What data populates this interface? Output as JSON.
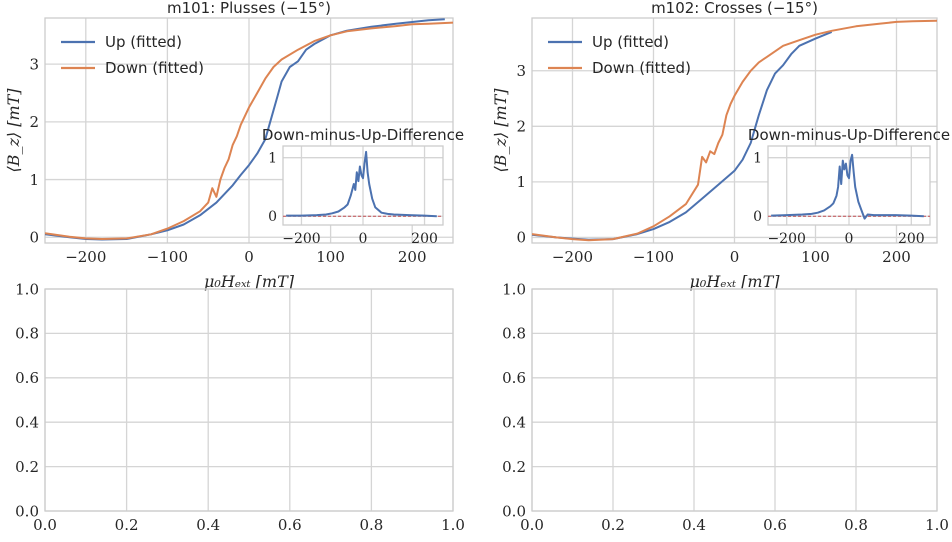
{
  "figure": {
    "background": "#ffffff",
    "grid_color": "#d5d5d5",
    "axes_color": "#cccccc",
    "text_color": "#262626"
  },
  "chart_data": [
    {
      "type": "line",
      "title": "m101: Plusses (−15°)",
      "xlabel": "μ₀Hₑₓₜ [mT]",
      "ylabel": "⟨B_z⟩ [mT]",
      "xlim": [
        -250,
        250
      ],
      "ylim": [
        -0.1,
        3.8
      ],
      "xticks": [
        -200,
        -100,
        0,
        100,
        200
      ],
      "xtick_labels": [
        "−200",
        "−100",
        "0",
        "100",
        "200"
      ],
      "yticks": [
        0,
        1,
        2,
        3
      ],
      "ytick_labels": [
        "0",
        "1",
        "2",
        "3"
      ],
      "grid": true,
      "legend_position": "upper-left",
      "series": [
        {
          "name": "Up (fitted)",
          "color": "#4c72b0",
          "x": [
            -250,
            -220,
            -200,
            -180,
            -150,
            -120,
            -100,
            -80,
            -60,
            -40,
            -20,
            -10,
            0,
            10,
            20,
            30,
            35,
            40,
            50,
            60,
            70,
            80,
            100,
            120,
            150,
            180,
            200,
            220,
            240
          ],
          "y": [
            0.05,
            0.0,
            -0.03,
            -0.04,
            -0.03,
            0.05,
            0.12,
            0.22,
            0.38,
            0.6,
            0.9,
            1.08,
            1.25,
            1.45,
            1.7,
            2.2,
            2.45,
            2.7,
            2.95,
            3.05,
            3.25,
            3.35,
            3.5,
            3.58,
            3.65,
            3.7,
            3.73,
            3.76,
            3.78
          ]
        },
        {
          "name": "Down (fitted)",
          "color": "#dd8452",
          "x": [
            -250,
            -220,
            -200,
            -180,
            -150,
            -120,
            -100,
            -80,
            -60,
            -50,
            -45,
            -40,
            -35,
            -30,
            -25,
            -20,
            -15,
            -10,
            -5,
            0,
            10,
            20,
            30,
            40,
            60,
            80,
            100,
            120,
            150,
            180,
            200,
            220,
            250
          ],
          "y": [
            0.07,
            0.01,
            -0.02,
            -0.03,
            -0.02,
            0.05,
            0.15,
            0.28,
            0.45,
            0.6,
            0.85,
            0.7,
            1.0,
            1.2,
            1.35,
            1.6,
            1.75,
            1.95,
            2.1,
            2.25,
            2.5,
            2.75,
            2.95,
            3.08,
            3.25,
            3.4,
            3.5,
            3.57,
            3.62,
            3.66,
            3.69,
            3.7,
            3.72
          ]
        }
      ],
      "inset": {
        "type": "line",
        "title": "Down-minus-Up-Difference",
        "xlim": [
          -260,
          260
        ],
        "ylim": [
          -0.15,
          1.2
        ],
        "xticks": [
          -200,
          0,
          200
        ],
        "xtick_labels": [
          "−200",
          "0",
          "200"
        ],
        "yticks": [
          0,
          1
        ],
        "ytick_labels": [
          "0",
          "1"
        ],
        "zero_line_color": "#c44e52",
        "series": [
          {
            "color": "#4c72b0",
            "x": [
              -250,
              -200,
              -150,
              -120,
              -100,
              -80,
              -60,
              -50,
              -40,
              -30,
              -25,
              -20,
              -15,
              -10,
              -5,
              0,
              5,
              10,
              15,
              20,
              30,
              40,
              60,
              80,
              100,
              150,
              200,
              240
            ],
            "y": [
              0.01,
              0.01,
              0.02,
              0.03,
              0.05,
              0.08,
              0.15,
              0.2,
              0.35,
              0.55,
              0.45,
              0.75,
              0.6,
              0.85,
              0.7,
              0.65,
              0.9,
              1.1,
              0.75,
              0.55,
              0.3,
              0.15,
              0.06,
              0.04,
              0.03,
              0.02,
              0.01,
              0.0
            ]
          }
        ]
      }
    },
    {
      "type": "line",
      "title": "m102: Crosses (−15°)",
      "xlabel": "μ₀Hₑₓₜ [mT]",
      "ylabel": "⟨B_z⟩ [mT]",
      "xlim": [
        -250,
        250
      ],
      "ylim": [
        -0.1,
        3.95
      ],
      "xticks": [
        -200,
        -100,
        0,
        100,
        200
      ],
      "xtick_labels": [
        "−200",
        "−100",
        "0",
        "100",
        "200"
      ],
      "yticks": [
        0,
        1,
        2,
        3
      ],
      "ytick_labels": [
        "0",
        "1",
        "2",
        "3"
      ],
      "grid": true,
      "legend_position": "upper-left",
      "series": [
        {
          "name": "Up (fitted)",
          "color": "#4c72b0",
          "x": [
            -250,
            -220,
            -200,
            -180,
            -150,
            -120,
            -100,
            -80,
            -60,
            -40,
            -20,
            0,
            10,
            20,
            30,
            40,
            50,
            60,
            70,
            80,
            100,
            120
          ],
          "y": [
            0.05,
            0.0,
            -0.02,
            -0.04,
            -0.03,
            0.06,
            0.15,
            0.28,
            0.45,
            0.7,
            0.95,
            1.2,
            1.4,
            1.7,
            2.2,
            2.65,
            2.95,
            3.1,
            3.3,
            3.45,
            3.58,
            3.7
          ]
        },
        {
          "name": "Down (fitted)",
          "color": "#dd8452",
          "x": [
            -250,
            -220,
            -200,
            -180,
            -150,
            -120,
            -100,
            -80,
            -60,
            -45,
            -40,
            -35,
            -30,
            -25,
            -20,
            -15,
            -10,
            -5,
            0,
            10,
            20,
            30,
            40,
            60,
            80,
            100,
            120,
            150,
            180,
            200,
            220,
            250
          ],
          "y": [
            0.06,
            0.0,
            -0.03,
            -0.05,
            -0.03,
            0.07,
            0.2,
            0.38,
            0.6,
            0.95,
            1.45,
            1.35,
            1.55,
            1.5,
            1.7,
            1.85,
            2.2,
            2.4,
            2.55,
            2.8,
            3.0,
            3.15,
            3.25,
            3.45,
            3.55,
            3.65,
            3.72,
            3.8,
            3.85,
            3.88,
            3.89,
            3.9
          ]
        }
      ],
      "inset": {
        "type": "line",
        "title": "Down-minus-Up-Difference",
        "xlim": [
          -260,
          260
        ],
        "ylim": [
          -0.15,
          1.2
        ],
        "xticks": [
          -200,
          0,
          200
        ],
        "xtick_labels": [
          "−200",
          "0",
          "200"
        ],
        "yticks": [
          0,
          1
        ],
        "ytick_labels": [
          "0",
          "1"
        ],
        "zero_line_color": "#c44e52",
        "series": [
          {
            "color": "#4c72b0",
            "x": [
              -250,
              -200,
              -150,
              -120,
              -100,
              -80,
              -60,
              -50,
              -40,
              -35,
              -30,
              -25,
              -20,
              -15,
              -10,
              -5,
              0,
              5,
              10,
              15,
              20,
              30,
              40,
              50,
              60,
              80,
              100,
              150,
              200,
              240
            ],
            "y": [
              0.01,
              0.02,
              0.03,
              0.04,
              0.06,
              0.1,
              0.17,
              0.22,
              0.35,
              0.5,
              0.85,
              0.55,
              0.95,
              0.8,
              0.9,
              0.7,
              0.65,
              0.95,
              1.05,
              0.75,
              0.5,
              0.25,
              0.1,
              -0.04,
              0.03,
              0.02,
              0.02,
              0.02,
              0.01,
              0.0
            ]
          }
        ]
      }
    },
    {
      "type": "line",
      "xlim": [
        0,
        1
      ],
      "ylim": [
        0,
        1
      ],
      "xticks": [
        0,
        0.2,
        0.4,
        0.6,
        0.8,
        1.0
      ],
      "xtick_labels": [
        "0.0",
        "0.2",
        "0.4",
        "0.6",
        "0.8",
        "1.0"
      ],
      "yticks": [
        0,
        0.2,
        0.4,
        0.6,
        0.8,
        1.0
      ],
      "ytick_labels": [
        "0.0",
        "0.2",
        "0.4",
        "0.6",
        "0.8",
        "1.0"
      ],
      "grid": true,
      "series": []
    },
    {
      "type": "line",
      "xlim": [
        0,
        1
      ],
      "ylim": [
        0,
        1
      ],
      "xticks": [
        0,
        0.2,
        0.4,
        0.6,
        0.8,
        1.0
      ],
      "xtick_labels": [
        "0.0",
        "0.2",
        "0.4",
        "0.6",
        "0.8",
        "1.0"
      ],
      "yticks": [
        0,
        0.2,
        0.4,
        0.6,
        0.8,
        1.0
      ],
      "ytick_labels": [
        "0.0",
        "0.2",
        "0.4",
        "0.6",
        "0.8",
        "1.0"
      ],
      "grid": true,
      "series": []
    }
  ]
}
